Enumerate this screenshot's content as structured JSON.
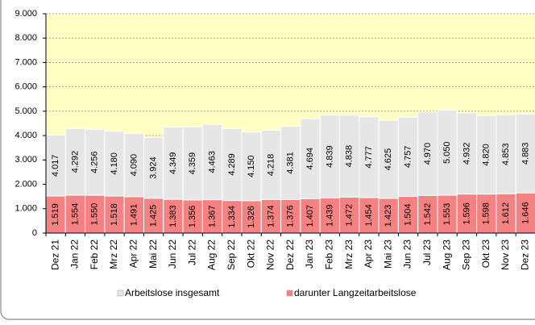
{
  "chart_data": {
    "type": "bar",
    "categories": [
      "Dez 21",
      "Jan 22",
      "Feb 22",
      "Mrz 22",
      "Apr 22",
      "Mai 22",
      "Jun 22",
      "Jul 22",
      "Aug 22",
      "Sep 22",
      "Okt 22",
      "Nov 22",
      "Dez 22",
      "Jan 23",
      "Feb 23",
      "Mrz 23",
      "Apr 23",
      "Mai 23",
      "Jun 23",
      "Jul 23",
      "Aug 23",
      "Sep 23",
      "Okt 23",
      "Nov 23",
      "Dez 23"
    ],
    "series": [
      {
        "name": "Arbeitslose insgesamt",
        "color": "#e6e6e6",
        "values": [
          4017,
          4292,
          4256,
          4180,
          4090,
          3924,
          4349,
          4359,
          4463,
          4289,
          4150,
          4218,
          4381,
          4694,
          4839,
          4838,
          4777,
          4625,
          4757,
          4970,
          5050,
          4932,
          4820,
          4853,
          4883
        ],
        "value_labels": [
          "4.017",
          "4.292",
          "4.256",
          "4.180",
          "4.090",
          "3.924",
          "4.349",
          "4.359",
          "4.463",
          "4.289",
          "4.150",
          "4.218",
          "4.381",
          "4.694",
          "4.839",
          "4.838",
          "4.777",
          "4.625",
          "4.757",
          "4.970",
          "5.050",
          "4.932",
          "4.820",
          "4.853",
          "4.883"
        ]
      },
      {
        "name": "darunter Langzeitarbeitslose",
        "color": "#f48282",
        "values": [
          1519,
          1554,
          1550,
          1518,
          1491,
          1425,
          1383,
          1356,
          1367,
          1334,
          1326,
          1374,
          1376,
          1407,
          1439,
          1472,
          1454,
          1423,
          1504,
          1542,
          1553,
          1596,
          1598,
          1612,
          1646
        ],
        "value_labels": [
          "1.519",
          "1.554",
          "1.550",
          "1.518",
          "1.491",
          "1.425",
          "1.383",
          "1.356",
          "1.367",
          "1.334",
          "1.326",
          "1.374",
          "1.376",
          "1.407",
          "1.439",
          "1.472",
          "1.454",
          "1.423",
          "1.504",
          "1.542",
          "1.553",
          "1.596",
          "1.598",
          "1.612",
          "1.646"
        ]
      }
    ],
    "ylim": [
      0,
      9000
    ],
    "yticks": [
      0,
      {
        "value": 1000,
        "label": "1.000"
      },
      {
        "value": 2000,
        "label": "2.000"
      },
      {
        "value": 3000,
        "label": "3.000"
      },
      {
        "value": 4000,
        "label": "4.000"
      },
      {
        "value": 5000,
        "label": "5.000"
      },
      {
        "value": 6000,
        "label": "6.000"
      },
      {
        "value": 7000,
        "label": "7.000"
      },
      {
        "value": 8000,
        "label": "8.000"
      },
      {
        "value": 9000,
        "label": "9.000"
      }
    ],
    "grid": true
  }
}
